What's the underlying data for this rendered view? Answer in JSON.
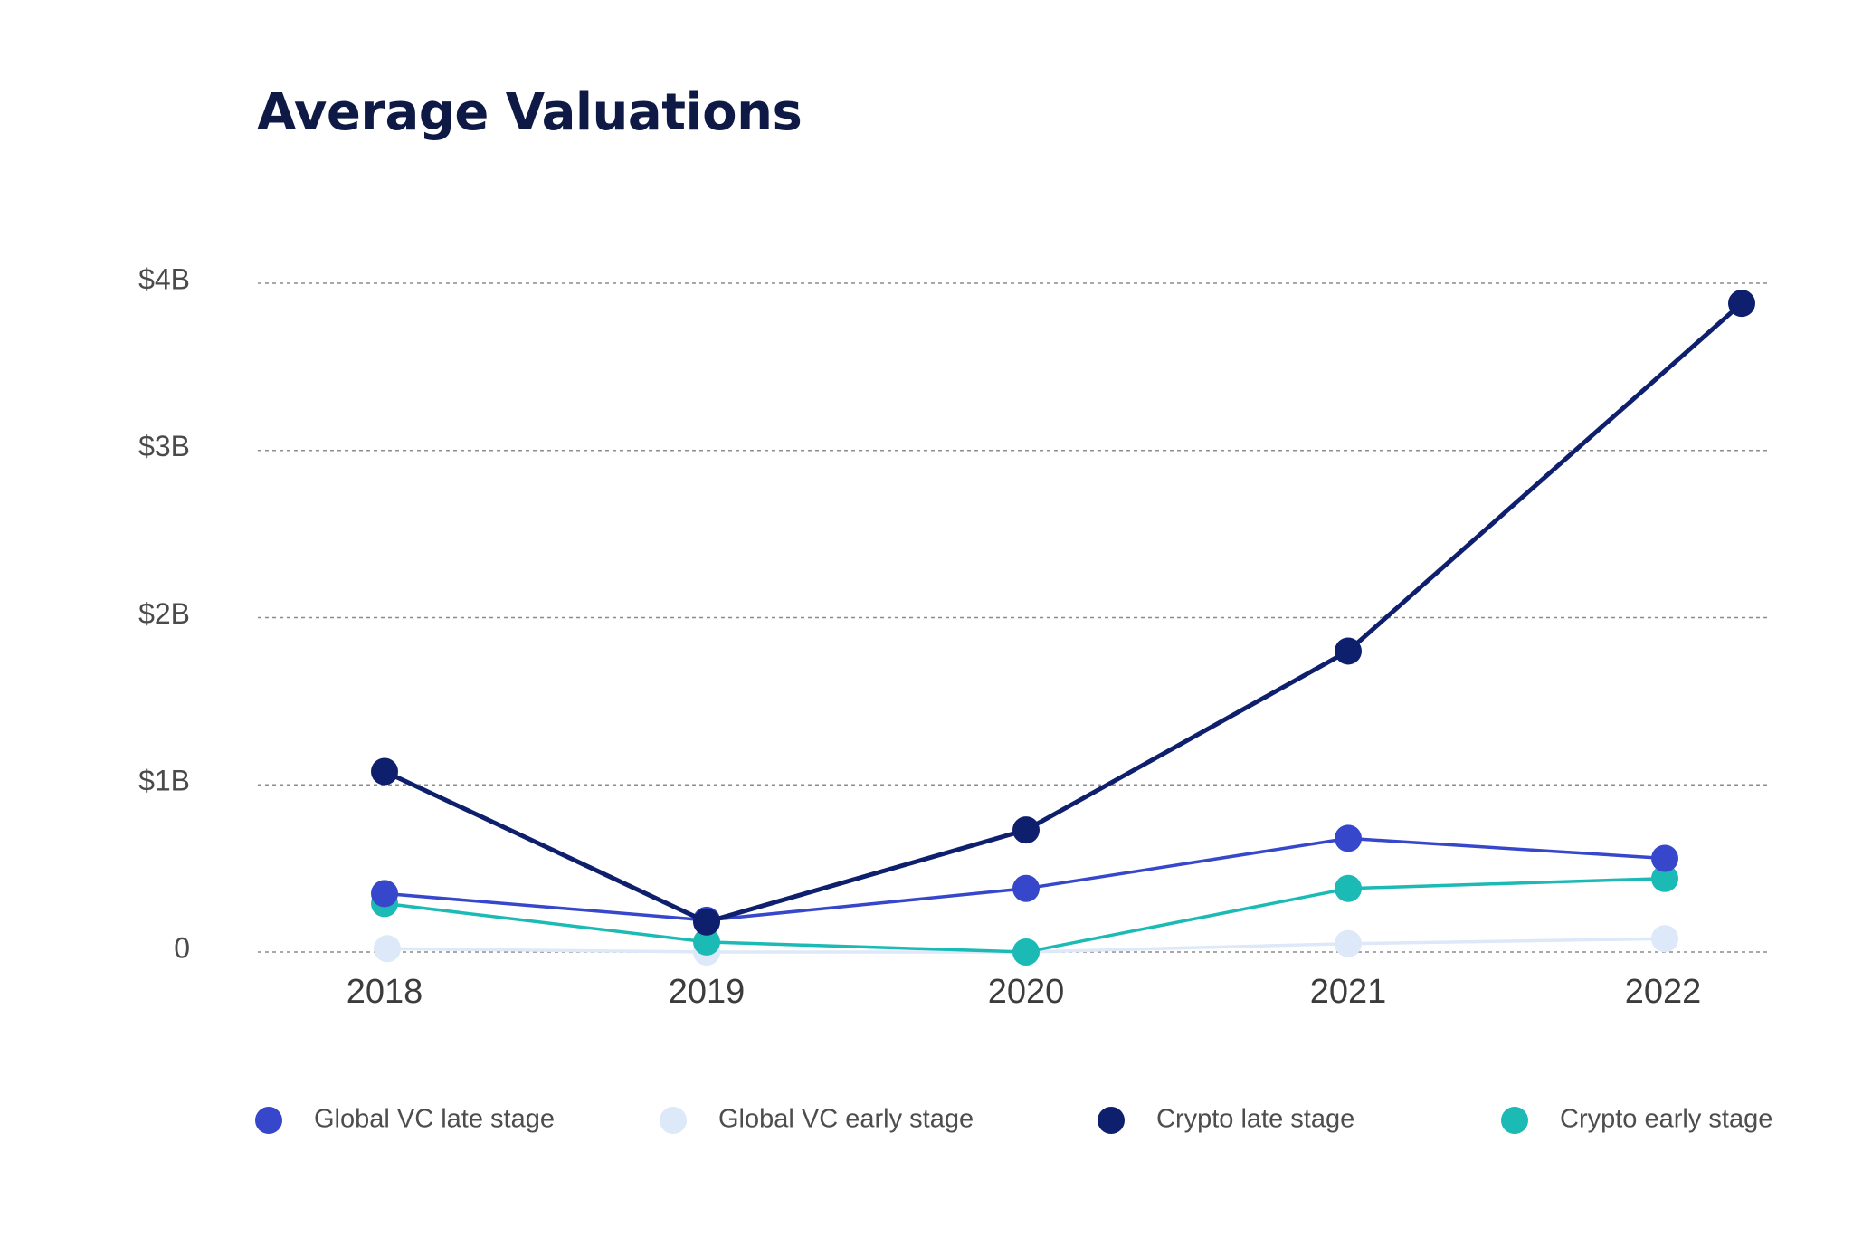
{
  "title": "Average Valuations",
  "chart_data": {
    "type": "line",
    "title": "Average Valuations",
    "xlabel": "",
    "ylabel": "",
    "categories": [
      "2018",
      "2019",
      "2020",
      "2021",
      "2022"
    ],
    "ylim": [
      0,
      4
    ],
    "yticks": [
      0,
      1,
      2,
      3,
      4
    ],
    "ytick_labels": [
      "0",
      "$1B",
      "$2B",
      "$3B",
      "$4B"
    ],
    "grid": true,
    "legend_position": "bottom",
    "series": [
      {
        "name": "Global VC early stage",
        "color": "#dde8f8",
        "values": [
          0.02,
          0.0,
          0.0,
          0.05,
          0.08
        ]
      },
      {
        "name": "Crypto early stage",
        "color": "#1bbab5",
        "values": [
          0.29,
          0.06,
          0.0,
          0.38,
          0.44
        ]
      },
      {
        "name": "Global VC late stage",
        "color": "#3747cb",
        "values": [
          0.35,
          0.19,
          0.38,
          0.68,
          0.56
        ]
      },
      {
        "name": "Crypto late stage",
        "color": "#0e1f6e",
        "values": [
          1.08,
          0.18,
          0.73,
          1.8,
          3.88
        ]
      }
    ],
    "legend": [
      {
        "name": "Global VC late stage",
        "color": "#3747cb"
      },
      {
        "name": "Global VC early stage",
        "color": "#dde8f8"
      },
      {
        "name": "Crypto late stage",
        "color": "#0e1f6e"
      },
      {
        "name": "Crypto early stage",
        "color": "#1bbab5"
      }
    ]
  }
}
